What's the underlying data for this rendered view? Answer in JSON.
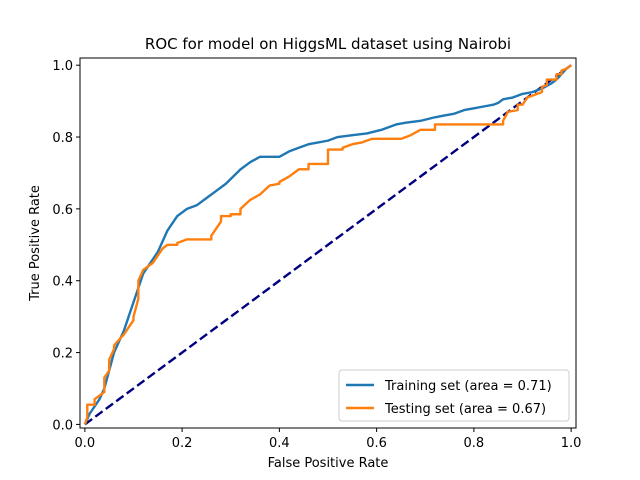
{
  "chart_data": {
    "type": "line",
    "title": "ROC for model on HiggsML dataset using Nairobi",
    "xlabel": "False Positive Rate",
    "ylabel": "True Positive Rate",
    "xlim": [
      -0.01,
      1.01
    ],
    "ylim": [
      -0.01,
      1.02
    ],
    "xticks": [
      0.0,
      0.2,
      0.4,
      0.6,
      0.8,
      1.0
    ],
    "xtick_labels": [
      "0.0",
      "0.2",
      "0.4",
      "0.6",
      "0.8",
      "1.0"
    ],
    "yticks": [
      0.0,
      0.2,
      0.4,
      0.6,
      0.8,
      1.0
    ],
    "ytick_labels": [
      "0.0",
      "0.2",
      "0.4",
      "0.6",
      "0.8",
      "1.0"
    ],
    "grid": false,
    "legend_position": "lower-right",
    "series": [
      {
        "name": "Training set (area = 0.71)",
        "color": "#1f77b4",
        "x": [
          0.0,
          0.01,
          0.02,
          0.03,
          0.04,
          0.05,
          0.06,
          0.07,
          0.08,
          0.09,
          0.1,
          0.11,
          0.12,
          0.13,
          0.15,
          0.17,
          0.19,
          0.21,
          0.23,
          0.25,
          0.27,
          0.29,
          0.32,
          0.34,
          0.36,
          0.38,
          0.4,
          0.42,
          0.44,
          0.46,
          0.48,
          0.5,
          0.52,
          0.55,
          0.58,
          0.61,
          0.64,
          0.66,
          0.69,
          0.72,
          0.74,
          0.76,
          0.78,
          0.8,
          0.82,
          0.84,
          0.85,
          0.86,
          0.88,
          0.9,
          0.92,
          0.94,
          0.96,
          0.97,
          0.98,
          0.99,
          1.0
        ],
        "y": [
          0.0,
          0.03,
          0.05,
          0.07,
          0.1,
          0.15,
          0.2,
          0.23,
          0.26,
          0.3,
          0.34,
          0.38,
          0.42,
          0.44,
          0.48,
          0.54,
          0.58,
          0.6,
          0.61,
          0.63,
          0.65,
          0.67,
          0.71,
          0.73,
          0.745,
          0.745,
          0.745,
          0.76,
          0.77,
          0.78,
          0.785,
          0.79,
          0.8,
          0.805,
          0.81,
          0.82,
          0.835,
          0.84,
          0.845,
          0.855,
          0.86,
          0.865,
          0.875,
          0.88,
          0.885,
          0.89,
          0.895,
          0.905,
          0.91,
          0.92,
          0.925,
          0.935,
          0.95,
          0.96,
          0.975,
          0.99,
          1.0
        ]
      },
      {
        "name": "Testing set (area = 0.67)",
        "color": "#ff7f0e",
        "x": [
          0.0,
          0.005,
          0.005,
          0.02,
          0.02,
          0.04,
          0.04,
          0.05,
          0.05,
          0.06,
          0.06,
          0.08,
          0.1,
          0.1,
          0.11,
          0.11,
          0.12,
          0.14,
          0.16,
          0.17,
          0.19,
          0.19,
          0.21,
          0.21,
          0.26,
          0.26,
          0.28,
          0.28,
          0.3,
          0.3,
          0.32,
          0.32,
          0.34,
          0.34,
          0.36,
          0.38,
          0.38,
          0.4,
          0.4,
          0.42,
          0.44,
          0.44,
          0.46,
          0.46,
          0.48,
          0.48,
          0.5,
          0.5,
          0.53,
          0.53,
          0.55,
          0.57,
          0.59,
          0.61,
          0.63,
          0.65,
          0.67,
          0.69,
          0.69,
          0.72,
          0.72,
          0.74,
          0.76,
          0.78,
          0.8,
          0.82,
          0.84,
          0.86,
          0.86,
          0.87,
          0.87,
          0.89,
          0.89,
          0.9,
          0.91,
          0.93,
          0.93,
          0.94,
          0.94,
          0.95,
          0.95,
          0.96,
          0.97,
          0.97,
          0.98,
          0.98,
          0.99,
          1.0
        ],
        "y": [
          0.0,
          0.02,
          0.055,
          0.055,
          0.07,
          0.09,
          0.13,
          0.15,
          0.18,
          0.21,
          0.22,
          0.25,
          0.29,
          0.3,
          0.35,
          0.4,
          0.43,
          0.45,
          0.49,
          0.5,
          0.5,
          0.505,
          0.515,
          0.515,
          0.515,
          0.525,
          0.565,
          0.58,
          0.58,
          0.585,
          0.585,
          0.6,
          0.625,
          0.625,
          0.64,
          0.665,
          0.665,
          0.67,
          0.675,
          0.69,
          0.71,
          0.71,
          0.71,
          0.725,
          0.725,
          0.725,
          0.725,
          0.765,
          0.765,
          0.77,
          0.78,
          0.785,
          0.795,
          0.795,
          0.795,
          0.795,
          0.805,
          0.82,
          0.82,
          0.82,
          0.835,
          0.835,
          0.835,
          0.835,
          0.835,
          0.835,
          0.835,
          0.835,
          0.845,
          0.87,
          0.87,
          0.875,
          0.89,
          0.89,
          0.91,
          0.92,
          0.92,
          0.925,
          0.94,
          0.945,
          0.96,
          0.96,
          0.96,
          0.975,
          0.975,
          0.985,
          0.99,
          1.0
        ]
      },
      {
        "name": "",
        "color": "#000080",
        "dashed": true,
        "x": [
          0.0,
          1.0
        ],
        "y": [
          0.0,
          1.0
        ]
      }
    ]
  }
}
